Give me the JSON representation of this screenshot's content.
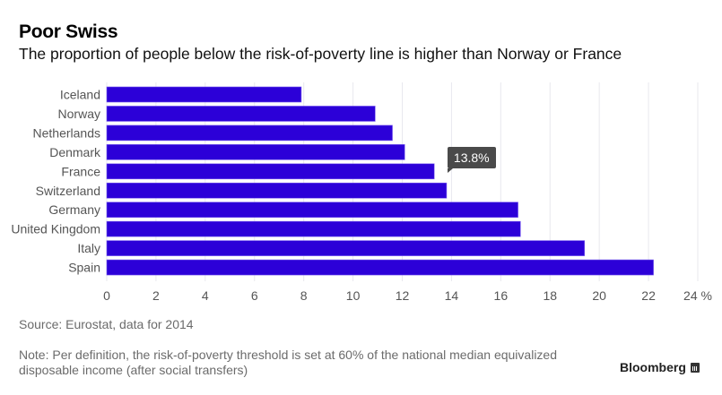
{
  "title": "Poor Swiss",
  "subtitle": "The proportion of people below the risk-of-poverty line is higher than Norway or France",
  "source": "Source: Eurostat, data for 2014",
  "note": "Note: Per definition, the risk-of-poverty threshold is set at 60% of the national median equivalized disposable income (after social transfers)",
  "brand": "Bloomberg",
  "colors": {
    "bar": "#2c00d8",
    "grid": "#e8e8ee",
    "tooltip_bg": "#4a4a4a",
    "axis_text": "#555555"
  },
  "tooltip": {
    "label": "13.8%",
    "category": "Switzerland"
  },
  "chart_data": {
    "type": "bar",
    "orientation": "horizontal",
    "title": "Poor Swiss",
    "subtitle": "The proportion of people below the risk-of-poverty line is higher than Norway or France",
    "categories": [
      "Iceland",
      "Norway",
      "Netherlands",
      "Denmark",
      "France",
      "Switzerland",
      "Germany",
      "United Kingdom",
      "Italy",
      "Spain"
    ],
    "values": [
      7.9,
      10.9,
      11.6,
      12.1,
      13.3,
      13.8,
      16.7,
      16.8,
      19.4,
      22.2
    ],
    "xlabel": "",
    "ylabel": "",
    "xlim": [
      0,
      24
    ],
    "xticks": [
      0,
      2,
      4,
      6,
      8,
      10,
      12,
      14,
      16,
      18,
      20,
      22,
      24
    ],
    "xtick_labels": [
      "0",
      "2",
      "4",
      "6",
      "8",
      "10",
      "12",
      "14",
      "16",
      "18",
      "20",
      "22",
      "24 %"
    ],
    "grid": true,
    "legend": "none",
    "annotations": [
      {
        "category": "Switzerland",
        "text": "13.8%"
      }
    ]
  }
}
